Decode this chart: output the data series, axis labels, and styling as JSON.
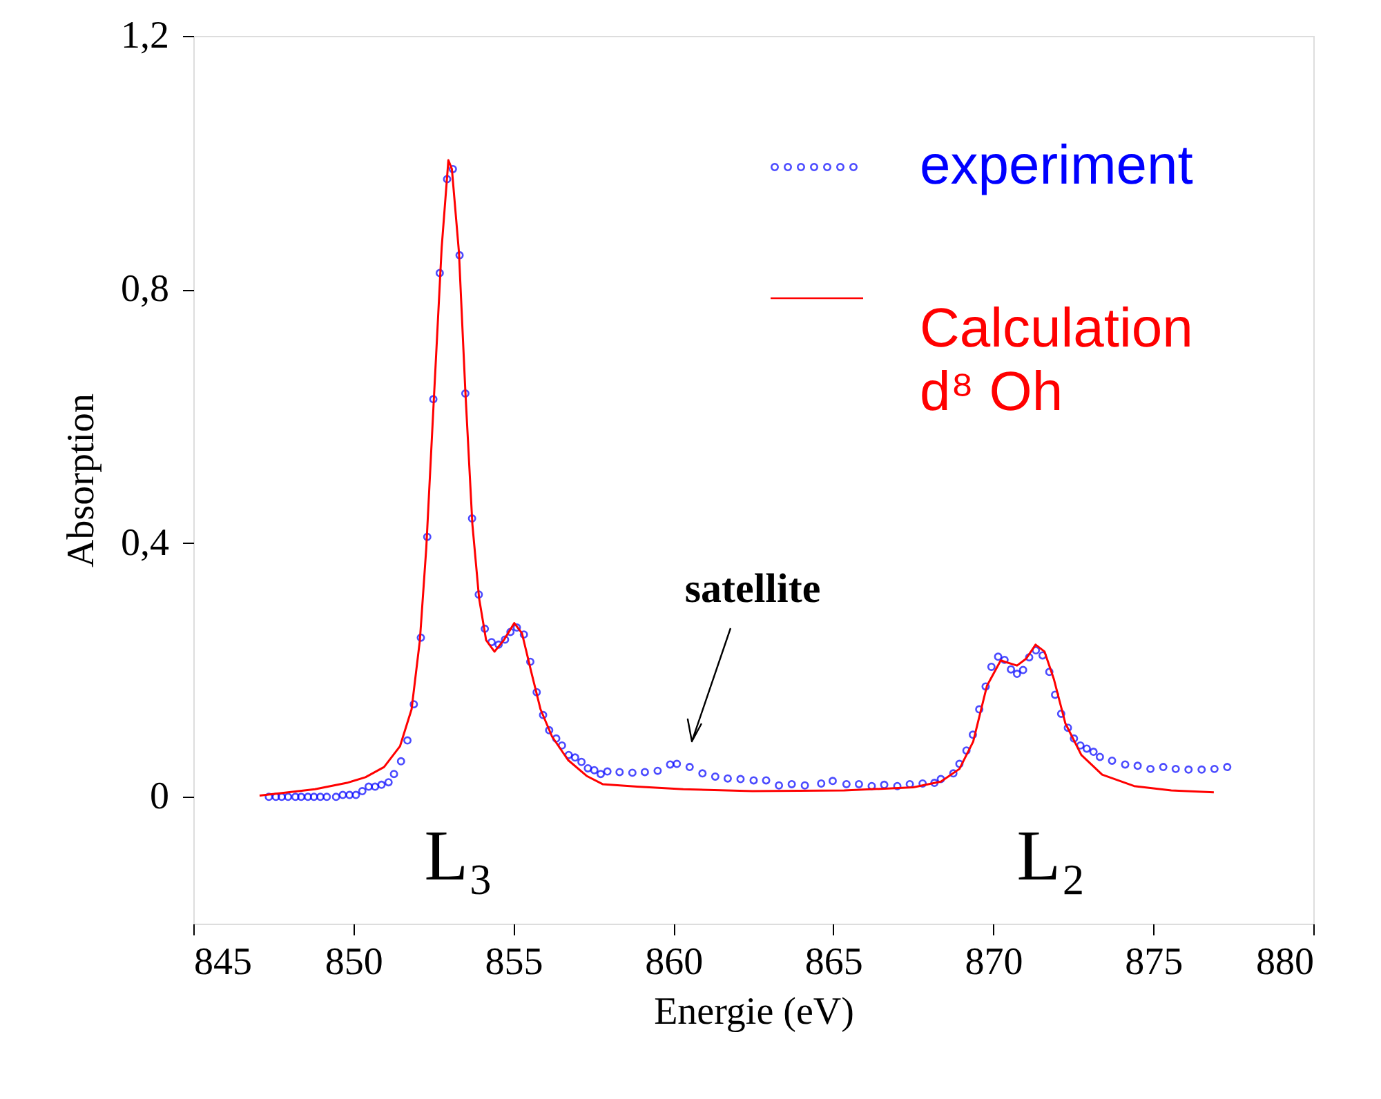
{
  "chart_data": {
    "type": "line",
    "xlabel": "Energie (eV)",
    "ylabel": "Absorption",
    "xlim": [
      845,
      880
    ],
    "xticks": [
      845,
      850,
      855,
      860,
      865,
      870,
      875,
      880
    ],
    "ylim": [
      -0.2,
      1.2
    ],
    "yticks": [
      {
        "value": 0,
        "label": "0"
      },
      {
        "value": 0.4,
        "label": "0,4"
      },
      {
        "value": 0.8,
        "label": "0,8"
      },
      {
        "value": 1.2,
        "label": "1,2"
      }
    ],
    "grid": false,
    "legend": "top right",
    "series": [
      {
        "name": "experiment",
        "type": "scatter",
        "marker": "circle",
        "color": "#0000ff",
        "x": [
          847.36,
          847.58,
          847.76,
          847.96,
          848.19,
          848.37,
          848.58,
          848.77,
          848.97,
          849.17,
          849.46,
          849.67,
          849.88,
          850.08,
          850.28,
          850.48,
          850.68,
          850.88,
          851.1,
          851.27,
          851.49,
          851.69,
          851.89,
          852.11,
          852.31,
          852.5,
          852.7,
          852.93,
          853.11,
          853.32,
          853.5,
          853.71,
          853.92,
          854.11,
          854.32,
          854.54,
          854.74,
          854.91,
          855.11,
          855.33,
          855.53,
          855.73,
          855.93,
          856.12,
          856.34,
          856.52,
          856.73,
          856.93,
          857.13,
          857.33,
          857.53,
          857.73,
          857.94,
          858.32,
          858.72,
          859.11,
          859.51,
          859.9,
          860.11,
          860.51,
          860.91,
          861.31,
          861.7,
          862.1,
          862.51,
          862.9,
          863.3,
          863.7,
          864.11,
          864.62,
          864.98,
          865.41,
          865.8,
          866.2,
          866.59,
          867.0,
          867.39,
          867.79,
          868.16,
          868.36,
          868.75,
          868.94,
          869.16,
          869.36,
          869.56,
          869.76,
          869.94,
          870.15,
          870.35,
          870.55,
          870.74,
          870.93,
          871.12,
          871.33,
          871.54,
          871.75,
          871.93,
          872.12,
          872.33,
          872.52,
          872.72,
          872.92,
          873.13,
          873.33,
          873.71,
          874.12,
          874.51,
          874.91,
          875.31,
          875.7,
          876.1,
          876.51,
          876.91,
          877.31
        ],
        "values": [
          0.0,
          0.0,
          0.0,
          0.0,
          0.0,
          0.0,
          0.0,
          0.0,
          0.0,
          0.0,
          0.0,
          0.003,
          0.003,
          0.003,
          0.009,
          0.016,
          0.016,
          0.019,
          0.023,
          0.036,
          0.056,
          0.089,
          0.146,
          0.251,
          0.41,
          0.627,
          0.826,
          0.974,
          0.99,
          0.854,
          0.636,
          0.439,
          0.319,
          0.265,
          0.244,
          0.24,
          0.248,
          0.26,
          0.267,
          0.256,
          0.213,
          0.165,
          0.129,
          0.105,
          0.092,
          0.081,
          0.066,
          0.062,
          0.055,
          0.045,
          0.042,
          0.036,
          0.04,
          0.039,
          0.038,
          0.039,
          0.041,
          0.051,
          0.052,
          0.047,
          0.037,
          0.032,
          0.029,
          0.028,
          0.026,
          0.026,
          0.018,
          0.02,
          0.018,
          0.021,
          0.025,
          0.02,
          0.02,
          0.017,
          0.019,
          0.017,
          0.02,
          0.021,
          0.022,
          0.028,
          0.037,
          0.052,
          0.073,
          0.098,
          0.138,
          0.174,
          0.205,
          0.221,
          0.216,
          0.201,
          0.194,
          0.2,
          0.22,
          0.231,
          0.223,
          0.197,
          0.161,
          0.131,
          0.109,
          0.092,
          0.081,
          0.076,
          0.071,
          0.063,
          0.057,
          0.051,
          0.049,
          0.044,
          0.047,
          0.044,
          0.043,
          0.043,
          0.044,
          0.047
        ]
      },
      {
        "name": "Calculation d⁸ Oh",
        "type": "line",
        "line_style": "solid",
        "color": "#ff0000",
        "x": [
          847.07,
          848.8,
          849.8,
          850.38,
          850.96,
          851.46,
          851.82,
          852.08,
          852.28,
          852.5,
          852.76,
          852.97,
          853.08,
          853.3,
          853.5,
          853.72,
          853.93,
          854.15,
          854.41,
          854.7,
          855.03,
          855.27,
          855.56,
          855.85,
          856.21,
          856.71,
          857.29,
          857.79,
          858.87,
          860.31,
          862.47,
          865.34,
          867.5,
          868.36,
          868.94,
          869.37,
          869.8,
          870.23,
          870.74,
          871.03,
          871.32,
          871.6,
          871.89,
          872.25,
          872.75,
          873.4,
          874.4,
          875.56,
          876.89
        ],
        "values": [
          0.002,
          0.012,
          0.022,
          0.031,
          0.047,
          0.08,
          0.138,
          0.247,
          0.393,
          0.611,
          0.866,
          1.004,
          0.99,
          0.859,
          0.64,
          0.43,
          0.313,
          0.247,
          0.229,
          0.247,
          0.274,
          0.258,
          0.197,
          0.138,
          0.095,
          0.058,
          0.033,
          0.02,
          0.016,
          0.012,
          0.009,
          0.01,
          0.015,
          0.024,
          0.044,
          0.087,
          0.175,
          0.215,
          0.207,
          0.218,
          0.24,
          0.229,
          0.186,
          0.116,
          0.066,
          0.035,
          0.017,
          0.01,
          0.007
        ]
      }
    ],
    "annotations": [
      "satellite",
      "L₃",
      "L₂"
    ]
  }
}
